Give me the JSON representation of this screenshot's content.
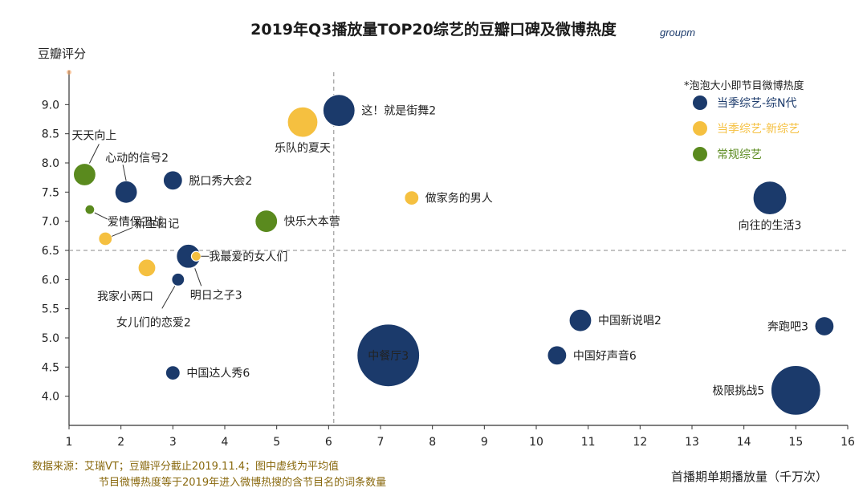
{
  "brand": "groupm",
  "source": {
    "line1": "数据来源：艾瑞VT；豆瓣评分截止2019.11.4；图中虚线为平均值",
    "line2": "节目微博热度等于2019年进入微博热搜的含节目名的词条数量"
  },
  "chart_data": {
    "type": "scatter",
    "title": "2019年Q3播放量TOP20综艺的豆瓣口碑及微博热度",
    "xlabel": "首播期单期播放量（千万次）",
    "ylabel": "豆瓣评分",
    "xlim": [
      1,
      16
    ],
    "ylim": [
      3.5,
      9.5
    ],
    "xticks": [
      1,
      2,
      3,
      4,
      5,
      6,
      7,
      8,
      9,
      10,
      11,
      12,
      13,
      14,
      15,
      16
    ],
    "yticks": [
      "4.0",
      "4.5",
      "5.0",
      "5.5",
      "6.0",
      "6.5",
      "7.0",
      "7.5",
      "8.0",
      "8.5",
      "9.0"
    ],
    "x_mean": 6.1,
    "y_mean": 6.5,
    "size_note": "*泡泡大小即节目微博热度",
    "legend": [
      {
        "key": "nseason",
        "label": "当季综艺-综N代",
        "color": "#1b3a6b"
      },
      {
        "key": "new",
        "label": "当季综艺-新综艺",
        "color": "#f5c040"
      },
      {
        "key": "regular",
        "label": "常规综艺",
        "color": "#5a8a1e"
      }
    ],
    "points": [
      {
        "name": "这！就是街舞2",
        "x": 6.2,
        "y": 8.9,
        "size": 40,
        "cat": "nseason",
        "anchor": "right"
      },
      {
        "name": "乐队的夏天",
        "x": 5.5,
        "y": 8.7,
        "size": 38,
        "cat": "new",
        "anchor": "below"
      },
      {
        "name": "天天向上",
        "x": 1.3,
        "y": 7.8,
        "size": 28,
        "cat": "regular",
        "anchor": "above-leader"
      },
      {
        "name": "心动的信号2",
        "x": 2.1,
        "y": 7.5,
        "size": 28,
        "cat": "nseason",
        "anchor": "above-leader"
      },
      {
        "name": "脱口秀大会2",
        "x": 3.0,
        "y": 7.7,
        "size": 24,
        "cat": "nseason",
        "anchor": "right"
      },
      {
        "name": "爱情保卫战",
        "x": 1.4,
        "y": 7.2,
        "size": 12,
        "cat": "regular",
        "anchor": "below-right"
      },
      {
        "name": "快乐大本营",
        "x": 4.8,
        "y": 7.0,
        "size": 28,
        "cat": "regular",
        "anchor": "right"
      },
      {
        "name": "做家务的男人",
        "x": 7.6,
        "y": 7.4,
        "size": 18,
        "cat": "new",
        "anchor": "right"
      },
      {
        "name": "向往的生活3",
        "x": 14.5,
        "y": 7.4,
        "size": 42,
        "cat": "nseason",
        "anchor": "below"
      },
      {
        "name": "新生日记",
        "x": 1.7,
        "y": 6.7,
        "size": 17,
        "cat": "new",
        "anchor": "above-right"
      },
      {
        "name": "我最爱的女人们",
        "x": 3.45,
        "y": 6.4,
        "size": 12,
        "cat": "new",
        "anchor": "right"
      },
      {
        "name": "明日之子3",
        "x": 3.3,
        "y": 6.4,
        "size": 30,
        "cat": "nseason",
        "anchor": "below-leader"
      },
      {
        "name": "我家小两口",
        "x": 2.5,
        "y": 6.2,
        "size": 22,
        "cat": "new",
        "anchor": "below-left"
      },
      {
        "name": "女儿们的恋爱2",
        "x": 3.1,
        "y": 6.0,
        "size": 16,
        "cat": "nseason",
        "anchor": "below-left"
      },
      {
        "name": "中餐厅3",
        "x": 7.15,
        "y": 4.7,
        "size": 78,
        "cat": "nseason",
        "anchor": "inside"
      },
      {
        "name": "中国新说唱2",
        "x": 10.85,
        "y": 5.3,
        "size": 28,
        "cat": "nseason",
        "anchor": "right"
      },
      {
        "name": "奔跑吧3",
        "x": 15.55,
        "y": 5.2,
        "size": 24,
        "cat": "nseason",
        "anchor": "left"
      },
      {
        "name": "中国好声音6",
        "x": 10.4,
        "y": 4.7,
        "size": 24,
        "cat": "nseason",
        "anchor": "right"
      },
      {
        "name": "中国达人秀6",
        "x": 3.0,
        "y": 4.4,
        "size": 18,
        "cat": "nseason",
        "anchor": "right"
      },
      {
        "name": "极限挑战5",
        "x": 15.0,
        "y": 4.1,
        "size": 62,
        "cat": "nseason",
        "anchor": "left"
      }
    ]
  }
}
